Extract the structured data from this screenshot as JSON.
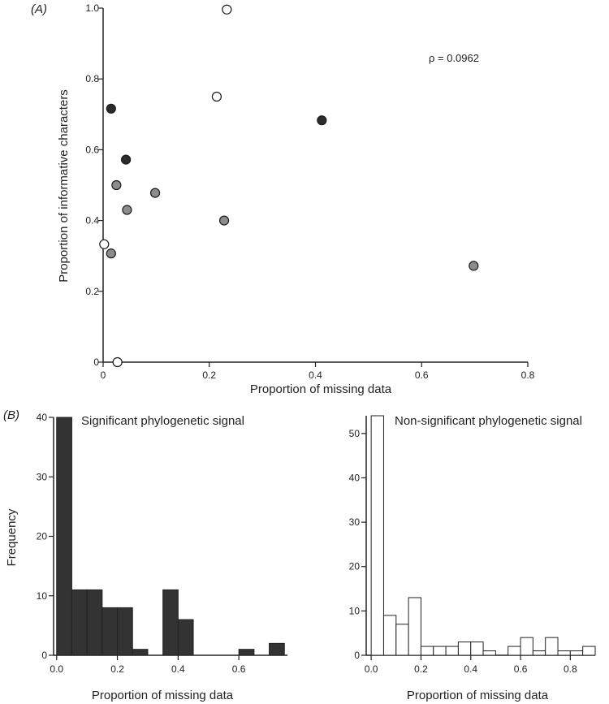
{
  "colors": {
    "axis": "#222222",
    "black_point": "#2b2b2b",
    "grey_point": "#8c8c8c",
    "open_point": "#ffffff",
    "bar_dark": "#333333",
    "bar_open": "#ffffff"
  },
  "chart_data": [
    {
      "panel_label": "(A)",
      "type": "scatter",
      "xlabel": "Proportion of missing data",
      "ylabel": "Proportion of informative characters",
      "xlim": [
        0,
        0.8
      ],
      "ylim": [
        0,
        1.0
      ],
      "xticks": [
        "0",
        "0.2",
        "0.4",
        "0.6",
        "0.8"
      ],
      "yticks": [
        "0",
        "0.2",
        "0.4",
        "0.6",
        "0.8",
        "1.0"
      ],
      "annotation": "ρ = 0.0962",
      "series": [
        {
          "style": "black",
          "points": [
            [
              0.015,
              0.716
            ],
            [
              0.043,
              0.572
            ],
            [
              0.412,
              0.683
            ]
          ]
        },
        {
          "style": "grey",
          "points": [
            [
              0.025,
              0.5
            ],
            [
              0.045,
              0.43
            ],
            [
              0.098,
              0.478
            ],
            [
              0.228,
              0.4
            ],
            [
              0.015,
              0.307
            ],
            [
              0.698,
              0.272
            ]
          ]
        },
        {
          "style": "open",
          "points": [
            [
              0.233,
              0.996
            ],
            [
              0.214,
              0.75
            ],
            [
              0.002,
              0.333
            ],
            [
              0.027,
              0.0
            ]
          ]
        }
      ]
    },
    {
      "panel_label": "(B)",
      "type": "bar",
      "title": "Significant phylogenetic signal",
      "xlabel": "Proportion of missing data",
      "ylabel": "Frequency",
      "xlim": [
        -0.01,
        0.76
      ],
      "ylim": [
        0,
        40
      ],
      "xticks": [
        "0.0",
        "0.2",
        "0.4",
        "0.6"
      ],
      "yticks": [
        "0",
        "10",
        "20",
        "30",
        "40"
      ],
      "bin_width": 0.05,
      "bin_start": 0.0,
      "values": [
        40,
        11,
        11,
        8,
        8,
        1,
        0,
        11,
        6,
        0,
        0,
        0,
        1,
        0,
        2
      ]
    },
    {
      "type": "bar",
      "title": "Non-significant phylogenetic signal",
      "xlabel": "Proportion of missing data",
      "ylabel": "",
      "xlim": [
        -0.02,
        0.9
      ],
      "ylim": [
        0,
        54
      ],
      "xticks": [
        "0.0",
        "0.2",
        "0.4",
        "0.6",
        "0.8"
      ],
      "yticks": [
        "0",
        "10",
        "20",
        "30",
        "40",
        "50"
      ],
      "bin_width": 0.05,
      "bin_start": 0.0,
      "values": [
        54,
        9,
        7,
        13,
        2,
        2,
        2,
        3,
        3,
        1,
        0,
        2,
        4,
        1,
        4,
        1,
        1,
        2
      ]
    }
  ]
}
